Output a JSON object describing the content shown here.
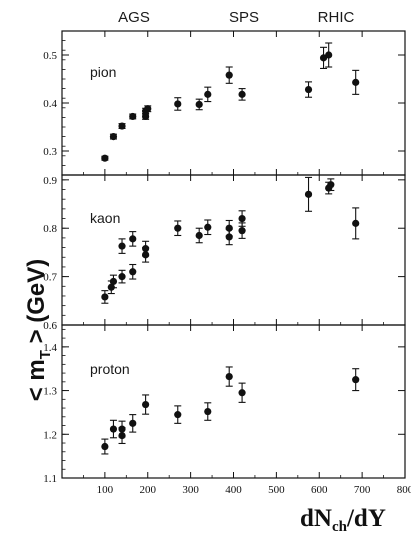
{
  "header_labels": [
    "AGS",
    "SPS",
    "RHIC"
  ],
  "chart_data": {
    "type": "scatter",
    "xlabel_main": "dN",
    "xlabel_sub": "ch",
    "xlabel_tail": "/dY",
    "ylabel_left": "< m",
    "ylabel_sub": "T",
    "ylabel_right": " > (GeV)",
    "xlim": [
      0,
      800
    ],
    "xticks": [
      "100",
      "200",
      "300",
      "400",
      "500",
      "600",
      "700",
      "800"
    ],
    "panels": [
      {
        "label": "pion",
        "ylim": [
          0.25,
          0.55
        ],
        "yticks": [
          "0.3",
          "0.4",
          "0.5"
        ],
        "points": [
          {
            "x": 100,
            "y": 0.285,
            "err": 0.004
          },
          {
            "x": 120,
            "y": 0.33,
            "err": 0.005
          },
          {
            "x": 140,
            "y": 0.352,
            "err": 0.005
          },
          {
            "x": 165,
            "y": 0.372,
            "err": 0.005
          },
          {
            "x": 195,
            "y": 0.372,
            "err": 0.006
          },
          {
            "x": 195,
            "y": 0.383,
            "err": 0.006
          },
          {
            "x": 200,
            "y": 0.388,
            "err": 0.006
          },
          {
            "x": 270,
            "y": 0.398,
            "err": 0.013
          },
          {
            "x": 320,
            "y": 0.397,
            "err": 0.011
          },
          {
            "x": 340,
            "y": 0.418,
            "err": 0.015
          },
          {
            "x": 390,
            "y": 0.458,
            "err": 0.017
          },
          {
            "x": 420,
            "y": 0.418,
            "err": 0.012
          },
          {
            "x": 575,
            "y": 0.428,
            "err": 0.016
          },
          {
            "x": 610,
            "y": 0.494,
            "err": 0.022
          },
          {
            "x": 622,
            "y": 0.5,
            "err": 0.025
          },
          {
            "x": 685,
            "y": 0.443,
            "err": 0.025
          }
        ]
      },
      {
        "label": "kaon",
        "ylim": [
          0.6,
          0.91
        ],
        "yticks": [
          "0.6",
          "0.7",
          "0.8",
          "0.9"
        ],
        "points": [
          {
            "x": 100,
            "y": 0.658,
            "err": 0.013
          },
          {
            "x": 115,
            "y": 0.678,
            "err": 0.013
          },
          {
            "x": 120,
            "y": 0.69,
            "err": 0.013
          },
          {
            "x": 140,
            "y": 0.7,
            "err": 0.013
          },
          {
            "x": 140,
            "y": 0.763,
            "err": 0.015
          },
          {
            "x": 165,
            "y": 0.71,
            "err": 0.015
          },
          {
            "x": 165,
            "y": 0.778,
            "err": 0.015
          },
          {
            "x": 195,
            "y": 0.745,
            "err": 0.015
          },
          {
            "x": 195,
            "y": 0.758,
            "err": 0.015
          },
          {
            "x": 270,
            "y": 0.8,
            "err": 0.015
          },
          {
            "x": 320,
            "y": 0.785,
            "err": 0.015
          },
          {
            "x": 340,
            "y": 0.802,
            "err": 0.015
          },
          {
            "x": 390,
            "y": 0.782,
            "err": 0.016
          },
          {
            "x": 390,
            "y": 0.8,
            "err": 0.016
          },
          {
            "x": 420,
            "y": 0.795,
            "err": 0.016
          },
          {
            "x": 420,
            "y": 0.82,
            "err": 0.016
          },
          {
            "x": 575,
            "y": 0.87,
            "err": 0.035
          },
          {
            "x": 622,
            "y": 0.883,
            "err": 0.012
          },
          {
            "x": 627,
            "y": 0.89,
            "err": 0.012
          },
          {
            "x": 685,
            "y": 0.81,
            "err": 0.032
          }
        ]
      },
      {
        "label": "proton",
        "ylim": [
          1.1,
          1.45
        ],
        "yticks": [
          "1.1",
          "1.2",
          "1.3",
          "1.4"
        ],
        "points": [
          {
            "x": 100,
            "y": 1.172,
            "err": 0.017
          },
          {
            "x": 120,
            "y": 1.212,
            "err": 0.02
          },
          {
            "x": 140,
            "y": 1.197,
            "err": 0.018
          },
          {
            "x": 140,
            "y": 1.212,
            "err": 0.018
          },
          {
            "x": 165,
            "y": 1.225,
            "err": 0.02
          },
          {
            "x": 195,
            "y": 1.268,
            "err": 0.022
          },
          {
            "x": 270,
            "y": 1.245,
            "err": 0.02
          },
          {
            "x": 340,
            "y": 1.252,
            "err": 0.02
          },
          {
            "x": 390,
            "y": 1.332,
            "err": 0.022
          },
          {
            "x": 420,
            "y": 1.295,
            "err": 0.022
          },
          {
            "x": 685,
            "y": 1.325,
            "err": 0.025
          }
        ]
      }
    ]
  }
}
